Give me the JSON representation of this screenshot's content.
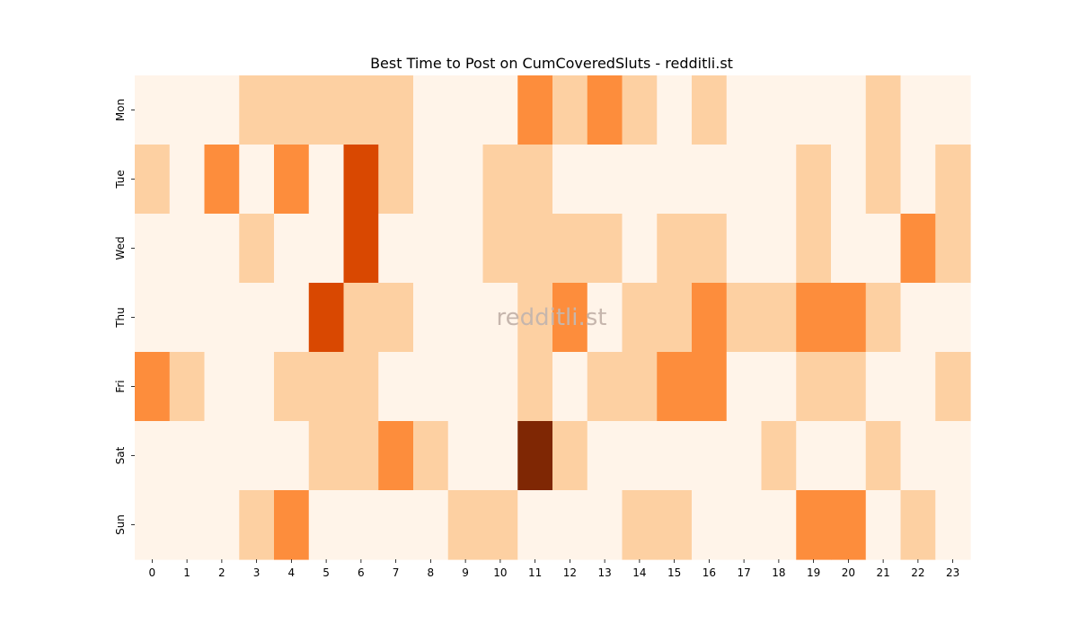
{
  "chart_data": {
    "type": "heatmap",
    "title": "Best Time to Post on CumCoveredSluts - redditli.st",
    "xlabel": "",
    "ylabel": "",
    "watermark": "redditli.st",
    "x": [
      "0",
      "1",
      "2",
      "3",
      "4",
      "5",
      "6",
      "7",
      "8",
      "9",
      "10",
      "11",
      "12",
      "13",
      "14",
      "15",
      "16",
      "17",
      "18",
      "19",
      "20",
      "21",
      "22",
      "23"
    ],
    "y": [
      "Mon",
      "Tue",
      "Wed",
      "Thu",
      "Fri",
      "Sat",
      "Sun"
    ],
    "values": [
      [
        0,
        0,
        0,
        1,
        1,
        1,
        1,
        1,
        0,
        0,
        0,
        2,
        1,
        2,
        1,
        0,
        1,
        0,
        0,
        0,
        0,
        1,
        0,
        0
      ],
      [
        1,
        0,
        2,
        0,
        2,
        0,
        3,
        1,
        0,
        0,
        1,
        1,
        0,
        0,
        0,
        0,
        0,
        0,
        0,
        1,
        0,
        1,
        0,
        1
      ],
      [
        0,
        0,
        0,
        1,
        0,
        0,
        3,
        0,
        0,
        0,
        1,
        1,
        1,
        1,
        0,
        1,
        1,
        0,
        0,
        1,
        0,
        0,
        2,
        1
      ],
      [
        0,
        0,
        0,
        0,
        0,
        3,
        1,
        1,
        0,
        0,
        0,
        1,
        2,
        0,
        1,
        1,
        2,
        1,
        1,
        2,
        2,
        1,
        0,
        0
      ],
      [
        2,
        1,
        0,
        0,
        1,
        1,
        1,
        0,
        0,
        0,
        0,
        1,
        0,
        1,
        1,
        2,
        2,
        0,
        0,
        1,
        1,
        0,
        0,
        1
      ],
      [
        0,
        0,
        0,
        0,
        0,
        1,
        1,
        2,
        1,
        0,
        0,
        4,
        1,
        0,
        0,
        0,
        0,
        0,
        1,
        0,
        0,
        1,
        0,
        0
      ],
      [
        0,
        0,
        0,
        1,
        2,
        0,
        0,
        0,
        0,
        1,
        1,
        0,
        0,
        0,
        1,
        1,
        0,
        0,
        0,
        2,
        2,
        0,
        1,
        0
      ]
    ],
    "colormap": [
      "#fff4e9",
      "#fdd0a2",
      "#fd8d3c",
      "#d94801",
      "#7f2704"
    ],
    "watermark_color": "#c6b6ad"
  }
}
